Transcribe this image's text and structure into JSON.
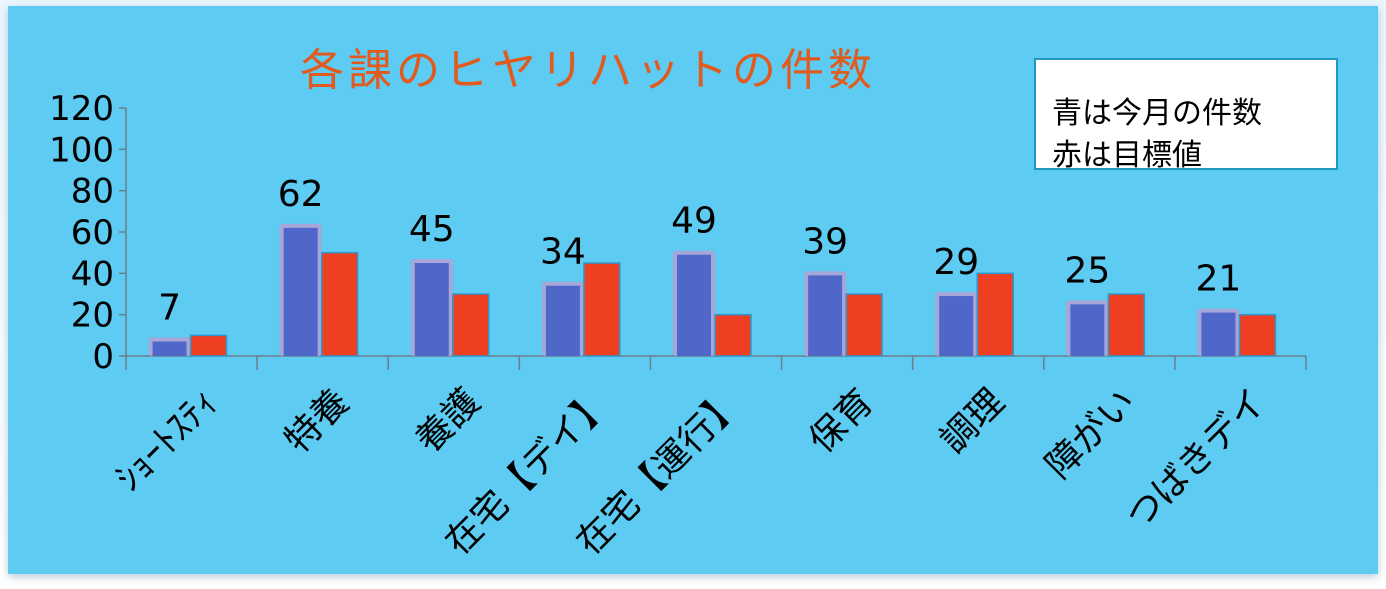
{
  "chart_data": {
    "type": "bar",
    "title": "各課のヒヤリハットの件数",
    "categories": [
      "ｼｮｰﾄｽﾃｨ",
      "特養",
      "養護",
      "在宅【デイ】",
      "在宅【運行】",
      "保育",
      "調理",
      "障がい",
      "つばきデイ"
    ],
    "series": [
      {
        "values": [
          7,
          62,
          45,
          34,
          49,
          39,
          29,
          25,
          21
        ],
        "color": "#4f67c8",
        "data_labels": true
      },
      {
        "values": [
          10,
          50,
          30,
          45,
          20,
          30,
          40,
          30,
          20
        ],
        "color": "#ee3f22",
        "data_labels": false
      }
    ],
    "ylim": [
      0,
      120
    ],
    "yticks": [
      0,
      20,
      40,
      60,
      80,
      100,
      120
    ],
    "xlabel": "",
    "ylabel": "",
    "grid": false,
    "legend": "none"
  },
  "note": {
    "line1": "青は今月の件数",
    "line2": "赤は目標値"
  },
  "colors": {
    "background": "#5ecbf2",
    "title": "#e15a1e",
    "current_bar": "#4f67c8",
    "target_bar": "#ee3f22"
  }
}
